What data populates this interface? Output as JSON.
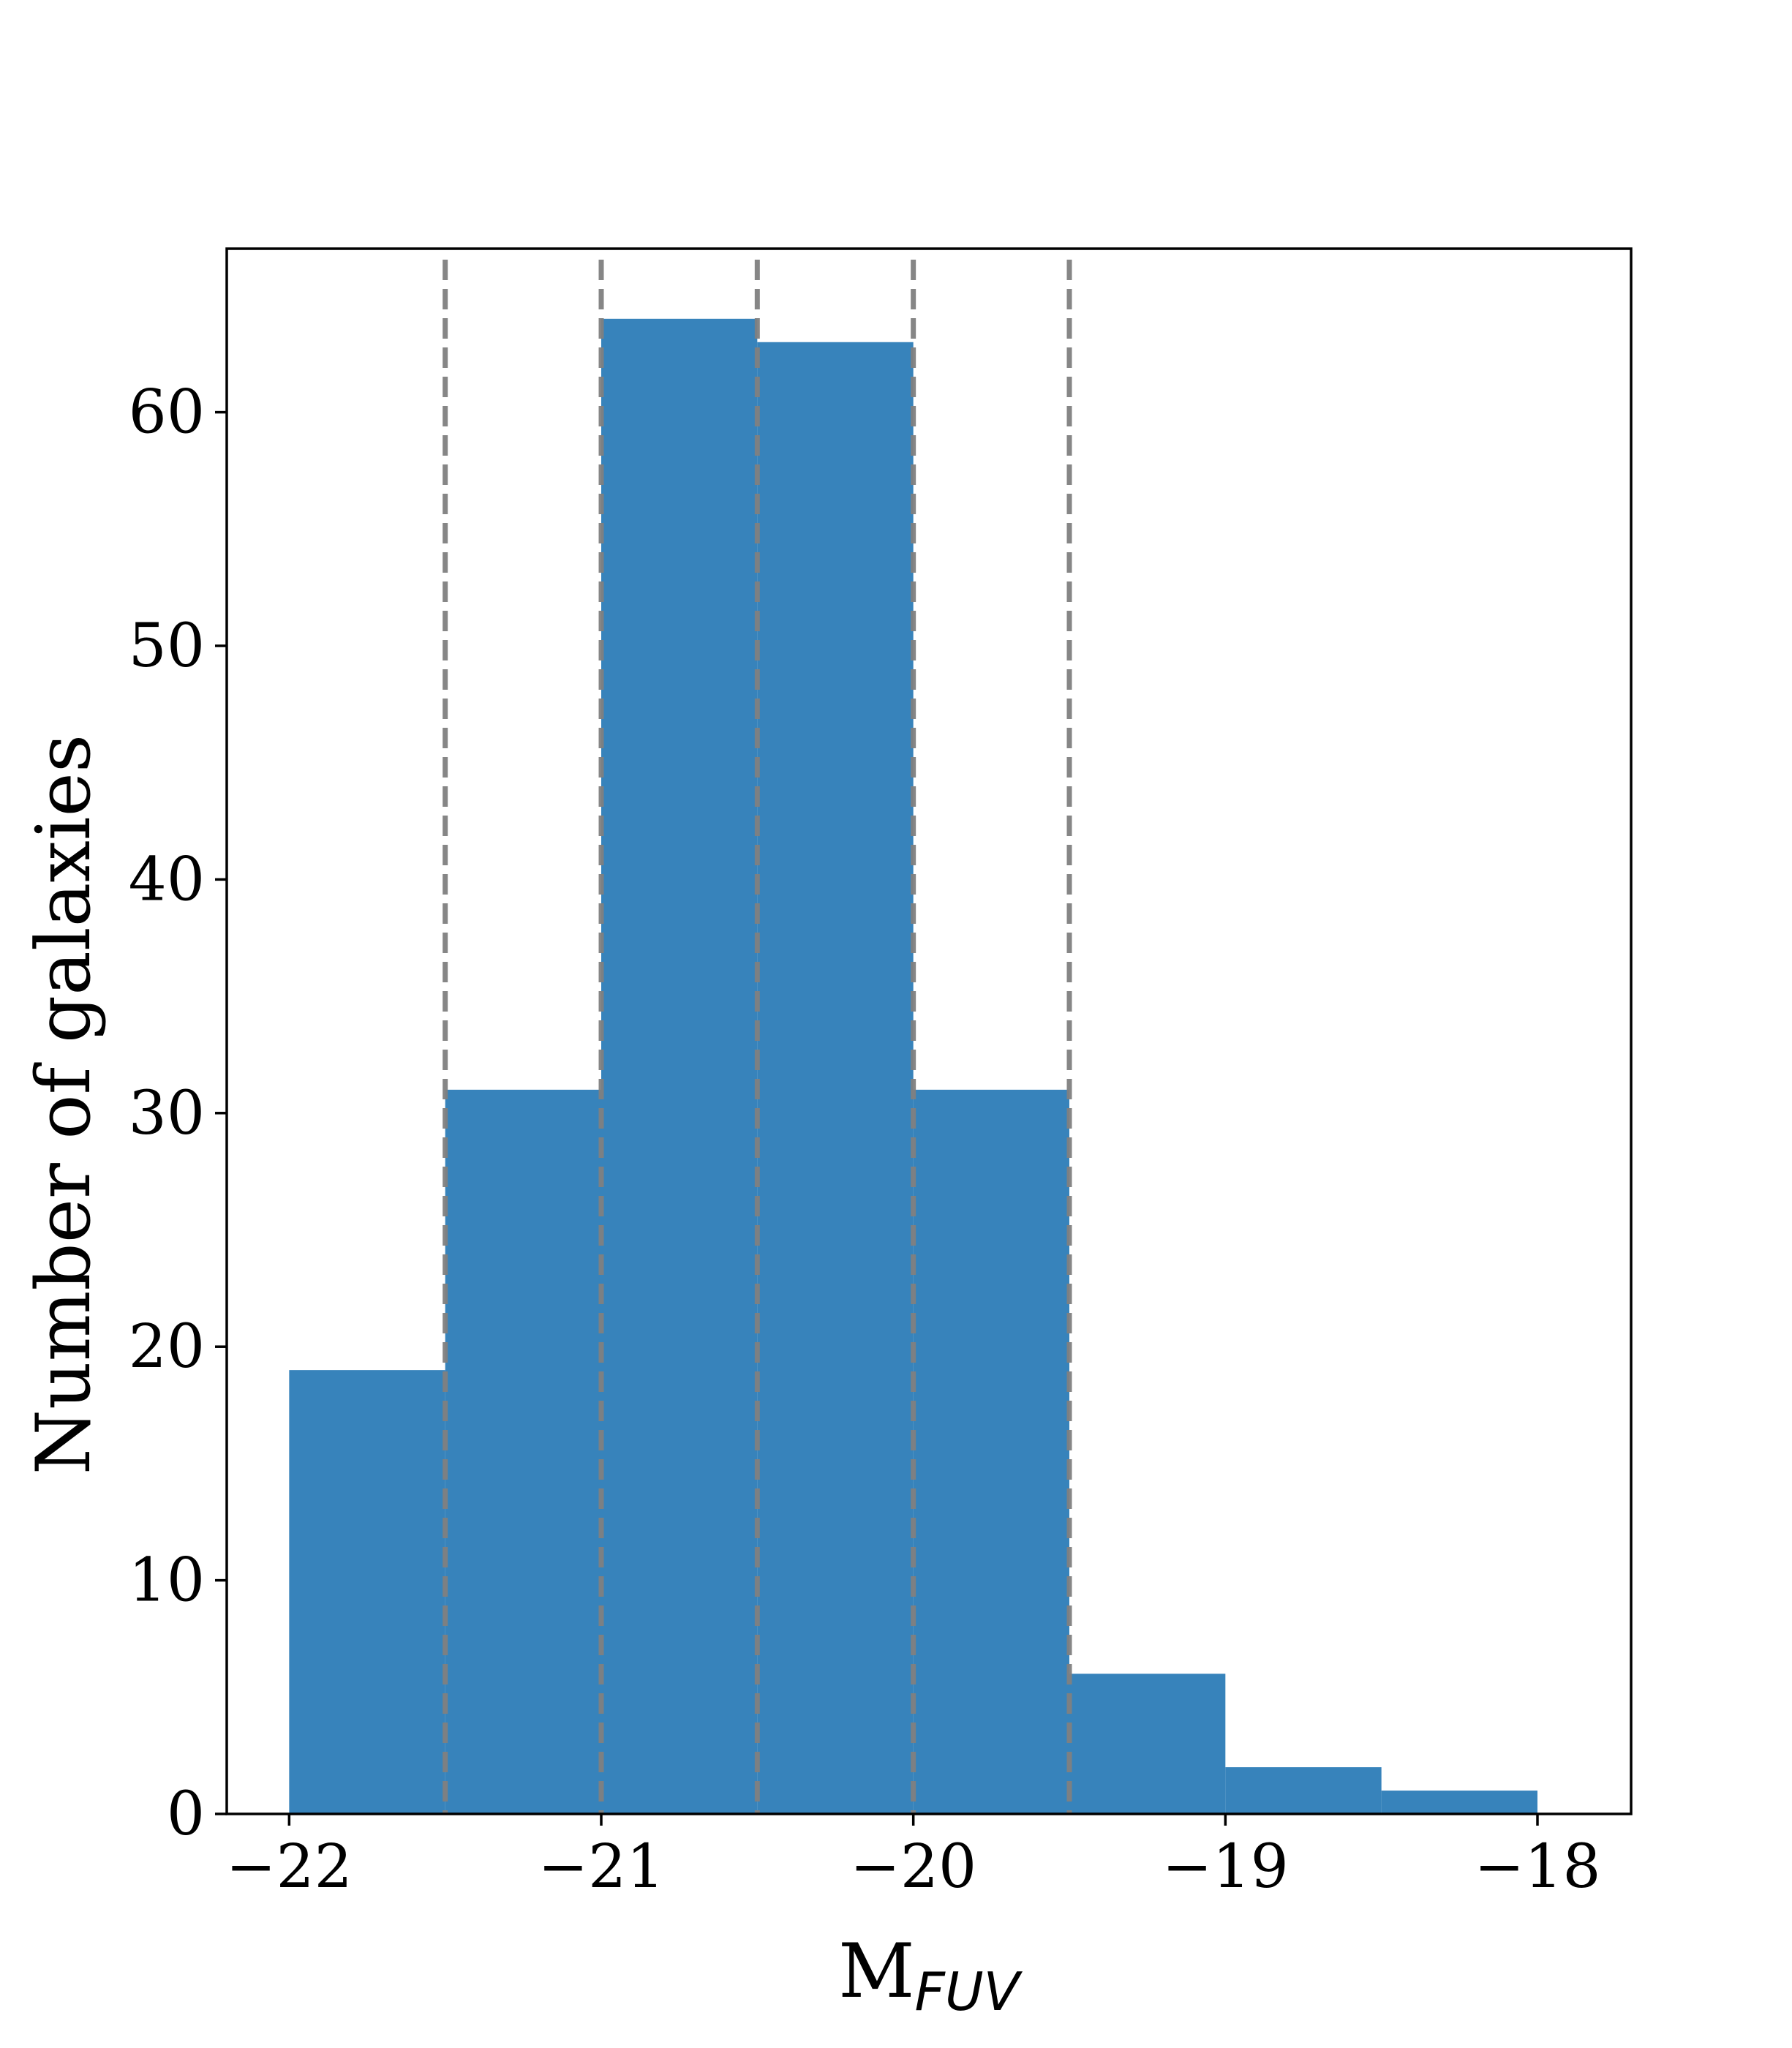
{
  "chart_data": {
    "type": "bar",
    "bin_edges": [
      -22,
      -21.5,
      -21,
      -20.5,
      -20,
      -19.5,
      -19,
      -18.5,
      -18
    ],
    "values": [
      19,
      31,
      64,
      63,
      31,
      6,
      2,
      1
    ],
    "bar_color": "#3783BB",
    "vlines": [
      -21.5,
      -21,
      -20.5,
      -20,
      -19.5
    ],
    "vline_color": "#808080",
    "xlabel": "M",
    "xlabel_sub": "FUV",
    "ylabel": "Number of galaxies",
    "xlim": [
      -22.2,
      -17.7
    ],
    "ylim": [
      0,
      67
    ],
    "xticks": [
      -22,
      -21,
      -20,
      -19,
      -18
    ],
    "xtick_labels": [
      "−22",
      "−21",
      "−20",
      "−19",
      "−18"
    ],
    "yticks": [
      0,
      10,
      20,
      30,
      40,
      50,
      60
    ],
    "ytick_labels": [
      "0",
      "10",
      "20",
      "30",
      "40",
      "50",
      "60"
    ],
    "grid": false
  }
}
